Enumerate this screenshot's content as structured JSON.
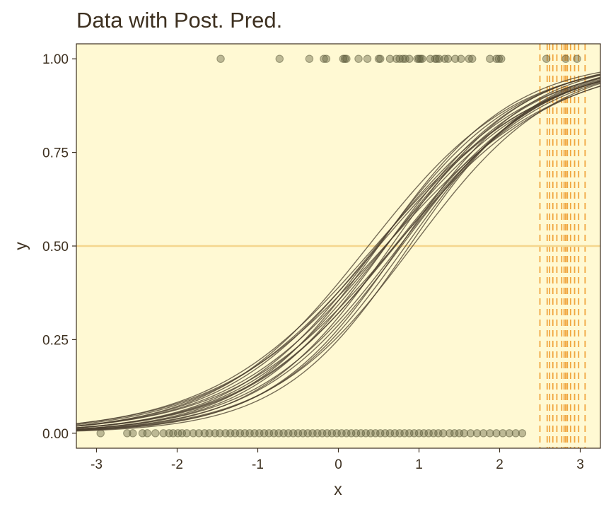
{
  "chart_data": {
    "type": "scatter",
    "title": "Data with Post. Pred.",
    "xlabel": "x",
    "ylabel": "y",
    "xlim": [
      -3.25,
      3.25
    ],
    "ylim": [
      -0.04,
      1.04
    ],
    "x_ticks": [
      -3,
      -2,
      -1,
      0,
      1,
      2,
      3
    ],
    "x_tick_labels": [
      "-3",
      "-2",
      "-1",
      "0",
      "1",
      "2",
      "3"
    ],
    "y_ticks": [
      0,
      0.25,
      0.5,
      0.75,
      1
    ],
    "y_tick_labels": [
      "0.00",
      "0.25",
      "0.50",
      "0.75",
      "1.00"
    ],
    "grid": false,
    "colors": {
      "panel_background": "#fff9d3",
      "points": "#5b5a3a",
      "curves": "#4a3e2e",
      "reference_line": "#f5d78e",
      "dashed_lines": "#f0a640",
      "text": "#3d3020"
    },
    "reference_line_y": 0.5,
    "points_y1_x": [
      -1.46,
      -0.73,
      -0.36,
      -0.18,
      -0.15,
      0.06,
      0.08,
      0.1,
      0.25,
      0.36,
      0.5,
      0.52,
      0.64,
      0.72,
      0.76,
      0.8,
      0.83,
      0.88,
      0.98,
      1.0,
      1.02,
      1.04,
      1.14,
      1.2,
      1.22,
      1.25,
      1.32,
      1.36,
      1.45,
      1.52,
      1.62,
      1.66,
      1.88,
      1.96,
      1.99,
      2.02,
      2.58,
      2.82,
      2.96
    ],
    "points_y0_x": [
      -2.95,
      -2.62,
      -2.55,
      -2.43,
      -2.37,
      -2.27,
      -2.17,
      -2.1,
      -2.05,
      -1.99,
      -1.94,
      -1.88,
      -1.8,
      -1.73,
      -1.66,
      -1.6,
      -1.53,
      -1.47,
      -1.4,
      -1.34,
      -1.28,
      -1.22,
      -1.16,
      -1.1,
      -1.04,
      -0.98,
      -0.92,
      -0.86,
      -0.8,
      -0.74,
      -0.68,
      -0.62,
      -0.56,
      -0.5,
      -0.44,
      -0.38,
      -0.32,
      -0.26,
      -0.2,
      -0.14,
      -0.08,
      -0.02,
      0.04,
      0.1,
      0.16,
      0.22,
      0.28,
      0.34,
      0.4,
      0.46,
      0.52,
      0.58,
      0.64,
      0.7,
      0.76,
      0.82,
      0.88,
      0.94,
      1.0,
      1.06,
      1.12,
      1.18,
      1.24,
      1.3,
      1.38,
      1.44,
      1.5,
      1.56,
      1.64,
      1.72,
      1.8,
      1.88,
      1.96,
      2.04,
      2.12,
      2.2,
      2.28
    ],
    "dashed_x": [
      2.5,
      2.59,
      2.62,
      2.66,
      2.71,
      2.77,
      2.8,
      2.82,
      2.84,
      2.88,
      2.93,
      2.98,
      3.06
    ],
    "posterior_curves": [
      {
        "a": -0.55,
        "b": 0.95
      },
      {
        "a": -0.45,
        "b": 0.98
      },
      {
        "a": -0.7,
        "b": 1.0
      },
      {
        "a": -0.6,
        "b": 1.03
      },
      {
        "a": -0.5,
        "b": 1.05
      },
      {
        "a": -0.75,
        "b": 1.06
      },
      {
        "a": -0.4,
        "b": 1.08
      },
      {
        "a": -0.65,
        "b": 1.1
      },
      {
        "a": -0.85,
        "b": 1.12
      },
      {
        "a": -0.55,
        "b": 1.13
      },
      {
        "a": -0.9,
        "b": 1.15
      },
      {
        "a": -0.7,
        "b": 1.18
      },
      {
        "a": -0.6,
        "b": 1.2
      },
      {
        "a": -1.0,
        "b": 1.2
      },
      {
        "a": -0.8,
        "b": 1.22
      },
      {
        "a": -0.95,
        "b": 1.24
      },
      {
        "a": -1.1,
        "b": 1.25
      },
      {
        "a": -0.75,
        "b": 1.08
      },
      {
        "a": -1.05,
        "b": 1.14
      },
      {
        "a": -0.5,
        "b": 1.0
      }
    ]
  }
}
